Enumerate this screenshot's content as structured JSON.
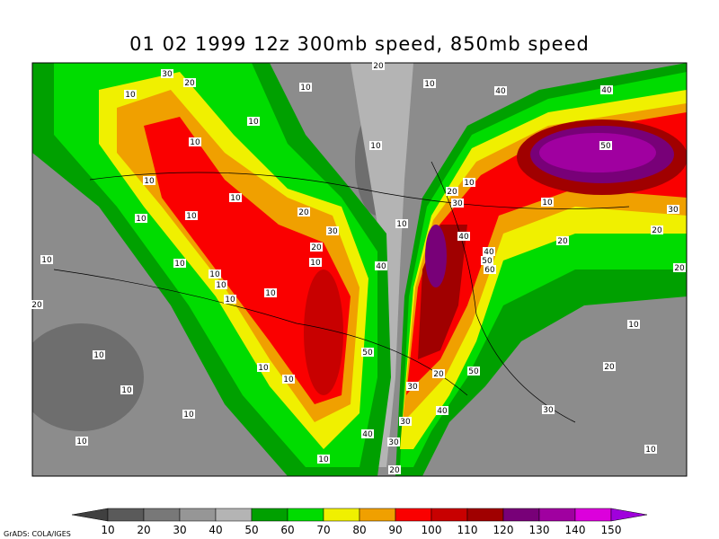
{
  "title": "01 02 1999 12z 300mb speed, 850mb speed",
  "contour_labels": [
    30,
    20,
    10,
    10,
    10,
    40,
    40,
    10,
    10,
    10,
    50,
    10,
    10,
    10,
    10,
    20,
    30,
    10,
    20,
    10,
    30,
    10,
    30,
    20,
    20,
    40,
    20,
    10,
    10,
    10,
    40,
    40,
    50,
    60,
    10,
    10,
    10,
    10,
    20,
    20,
    10,
    50,
    10,
    10,
    20,
    50,
    20,
    10,
    10,
    30,
    10,
    30,
    30,
    40,
    10,
    40,
    30,
    10,
    10,
    20,
    20
  ],
  "colorbar": {
    "labels": [
      10,
      20,
      30,
      40,
      50,
      60,
      70,
      80,
      90,
      100,
      110,
      120,
      130,
      140,
      150
    ],
    "colors": [
      "#404040",
      "#5a5a5a",
      "#787878",
      "#969696",
      "#b4b4b4",
      "#00a000",
      "#00dc00",
      "#f0f000",
      "#f0a000",
      "#fa0000",
      "#c80000",
      "#a00000",
      "#780078",
      "#a000a0",
      "#dc00dc",
      "#a000dc"
    ]
  },
  "credit": "GrADS: COLA/IGES"
}
